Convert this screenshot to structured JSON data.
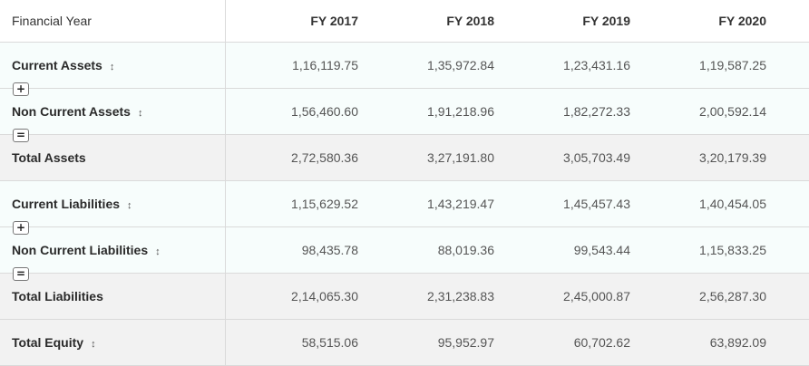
{
  "header": {
    "label": "Financial Year",
    "years": [
      "FY 2017",
      "FY 2018",
      "FY 2019",
      "FY 2020"
    ]
  },
  "rows": [
    {
      "label": "Current Assets",
      "sortable": true,
      "operator": "+",
      "values": [
        "1,16,119.75",
        "1,35,972.84",
        "1,23,431.16",
        "1,19,587.25"
      ]
    },
    {
      "label": "Non Current Assets",
      "sortable": true,
      "operator": "=",
      "values": [
        "1,56,460.60",
        "1,91,218.96",
        "1,82,272.33",
        "2,00,592.14"
      ]
    },
    {
      "label": "Total Assets",
      "sortable": false,
      "operator": "",
      "values": [
        "2,72,580.36",
        "3,27,191.80",
        "3,05,703.49",
        "3,20,179.39"
      ]
    },
    {
      "label": "Current Liabilities",
      "sortable": true,
      "operator": "+",
      "values": [
        "1,15,629.52",
        "1,43,219.47",
        "1,45,457.43",
        "1,40,454.05"
      ]
    },
    {
      "label": "Non Current Liabilities",
      "sortable": true,
      "operator": "=",
      "values": [
        "98,435.78",
        "88,019.36",
        "99,543.44",
        "1,15,833.25"
      ]
    },
    {
      "label": "Total Liabilities",
      "sortable": false,
      "operator": "",
      "values": [
        "2,14,065.30",
        "2,31,238.83",
        "2,45,000.87",
        "2,56,287.30"
      ]
    },
    {
      "label": "Total Equity",
      "sortable": true,
      "operator": "",
      "values": [
        "58,515.06",
        "95,952.97",
        "60,702.62",
        "63,892.09"
      ]
    }
  ],
  "icons": {
    "sort": "sort-updown-icon"
  },
  "colors": {
    "row_tint": "#f7fdfc",
    "total_bg": "#f2f2f2",
    "border": "#dadada"
  }
}
